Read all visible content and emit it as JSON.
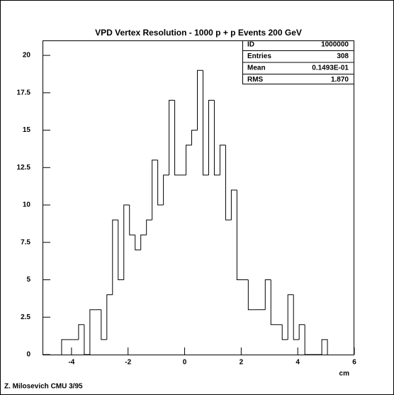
{
  "chart_data": {
    "type": "histogram",
    "title": "VPD Vertex Resolution - 1000 p + p Events 200 GeV",
    "x_label": "cm",
    "footer": "Z. Milosevich CMU 3/95",
    "stats": [
      {
        "label": "ID",
        "value": "1000000"
      },
      {
        "label": "Entries",
        "value": "308"
      },
      {
        "label": "Mean",
        "value": "0.1493E-01"
      },
      {
        "label": "RMS",
        "value": "1.870"
      }
    ],
    "bins": [
      -4.35,
      -4.15,
      -3.95,
      -3.75,
      -3.55,
      -3.35,
      -3.15,
      -2.95,
      -2.75,
      -2.55,
      -2.35,
      -2.15,
      -1.95,
      -1.75,
      -1.55,
      -1.35,
      -1.15,
      -0.95,
      -0.75,
      -0.55,
      -0.35,
      -0.15,
      0.05,
      0.25,
      0.45,
      0.65,
      0.85,
      1.05,
      1.25,
      1.45,
      1.65,
      1.85,
      2.05,
      2.25,
      2.45,
      2.65,
      2.85,
      3.05,
      3.25,
      3.45,
      3.65,
      3.85,
      4.05,
      4.25,
      4.45,
      4.65,
      4.85,
      5.05
    ],
    "values": [
      1,
      1,
      1,
      2,
      0,
      3,
      3,
      1,
      4,
      9,
      5,
      10,
      8,
      7,
      8,
      9,
      13,
      10,
      12,
      17,
      12,
      12,
      14,
      15,
      19,
      12,
      17,
      12,
      14,
      9,
      11,
      5,
      5,
      3,
      3,
      3,
      5,
      2,
      2,
      1,
      4,
      1,
      2,
      0,
      0,
      0,
      1
    ],
    "color": "#000000",
    "xlim": [
      -5,
      6
    ],
    "xticks": [
      -4,
      -2,
      0,
      2,
      4,
      6
    ],
    "ylim": [
      0,
      21
    ],
    "yticks": [
      0,
      2.5,
      5,
      7.5,
      10,
      12.5,
      15,
      17.5,
      20
    ]
  }
}
